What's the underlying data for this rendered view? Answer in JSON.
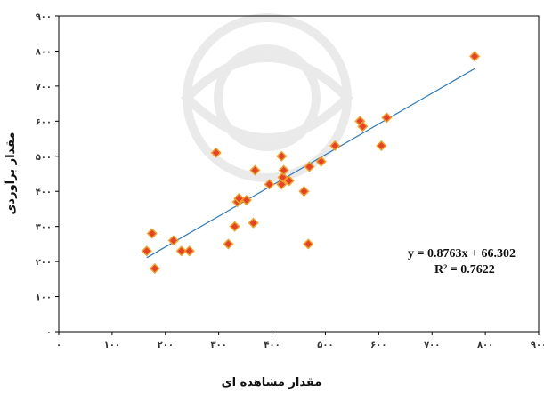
{
  "chart_data": {
    "type": "scatter",
    "xlabel": "مقدار مشاهده ای",
    "ylabel": "مقدار برآوردی",
    "xlim": [
      0,
      900
    ],
    "ylim": [
      0,
      900
    ],
    "x_ticks": [
      0,
      100,
      200,
      300,
      400,
      500,
      600,
      700,
      800,
      900
    ],
    "y_ticks": [
      0,
      100,
      200,
      300,
      400,
      500,
      600,
      700,
      800,
      900
    ],
    "x_tick_labels": [
      "۰",
      "۱۰۰",
      "۲۰۰",
      "۳۰۰",
      "۴۰۰",
      "۵۰۰",
      "۶۰۰",
      "۷۰۰",
      "۸۰۰",
      "۹۰۰"
    ],
    "y_tick_labels": [
      "۰",
      "۱۰۰",
      "۲۰۰",
      "۳۰۰",
      "۴۰۰",
      "۵۰۰",
      "۶۰۰",
      "۷۰۰",
      "۸۰۰",
      "۹۰۰"
    ],
    "grid": false,
    "marker_color": "#e8402a",
    "marker_edge_color": "#f0a020",
    "trendline_color": "#2b7bbf",
    "points": [
      [
        165,
        230
      ],
      [
        175,
        280
      ],
      [
        180,
        180
      ],
      [
        215,
        260
      ],
      [
        230,
        230
      ],
      [
        245,
        230
      ],
      [
        295,
        510
      ],
      [
        318,
        250
      ],
      [
        330,
        300
      ],
      [
        335,
        370
      ],
      [
        338,
        380
      ],
      [
        352,
        375
      ],
      [
        365,
        310
      ],
      [
        368,
        460
      ],
      [
        395,
        420
      ],
      [
        418,
        420
      ],
      [
        418,
        500
      ],
      [
        420,
        440
      ],
      [
        422,
        460
      ],
      [
        432,
        430
      ],
      [
        460,
        400
      ],
      [
        468,
        250
      ],
      [
        470,
        470
      ],
      [
        492,
        485
      ],
      [
        518,
        530
      ],
      [
        565,
        600
      ],
      [
        570,
        585
      ],
      [
        605,
        530
      ],
      [
        615,
        610
      ],
      [
        780,
        785
      ]
    ],
    "trendline": {
      "slope": 0.8763,
      "intercept": 66.302,
      "x_range": [
        165,
        780
      ],
      "equation_text": "y = 0.8763x + 66.302",
      "r2_text": "R² = 0.7622"
    }
  }
}
